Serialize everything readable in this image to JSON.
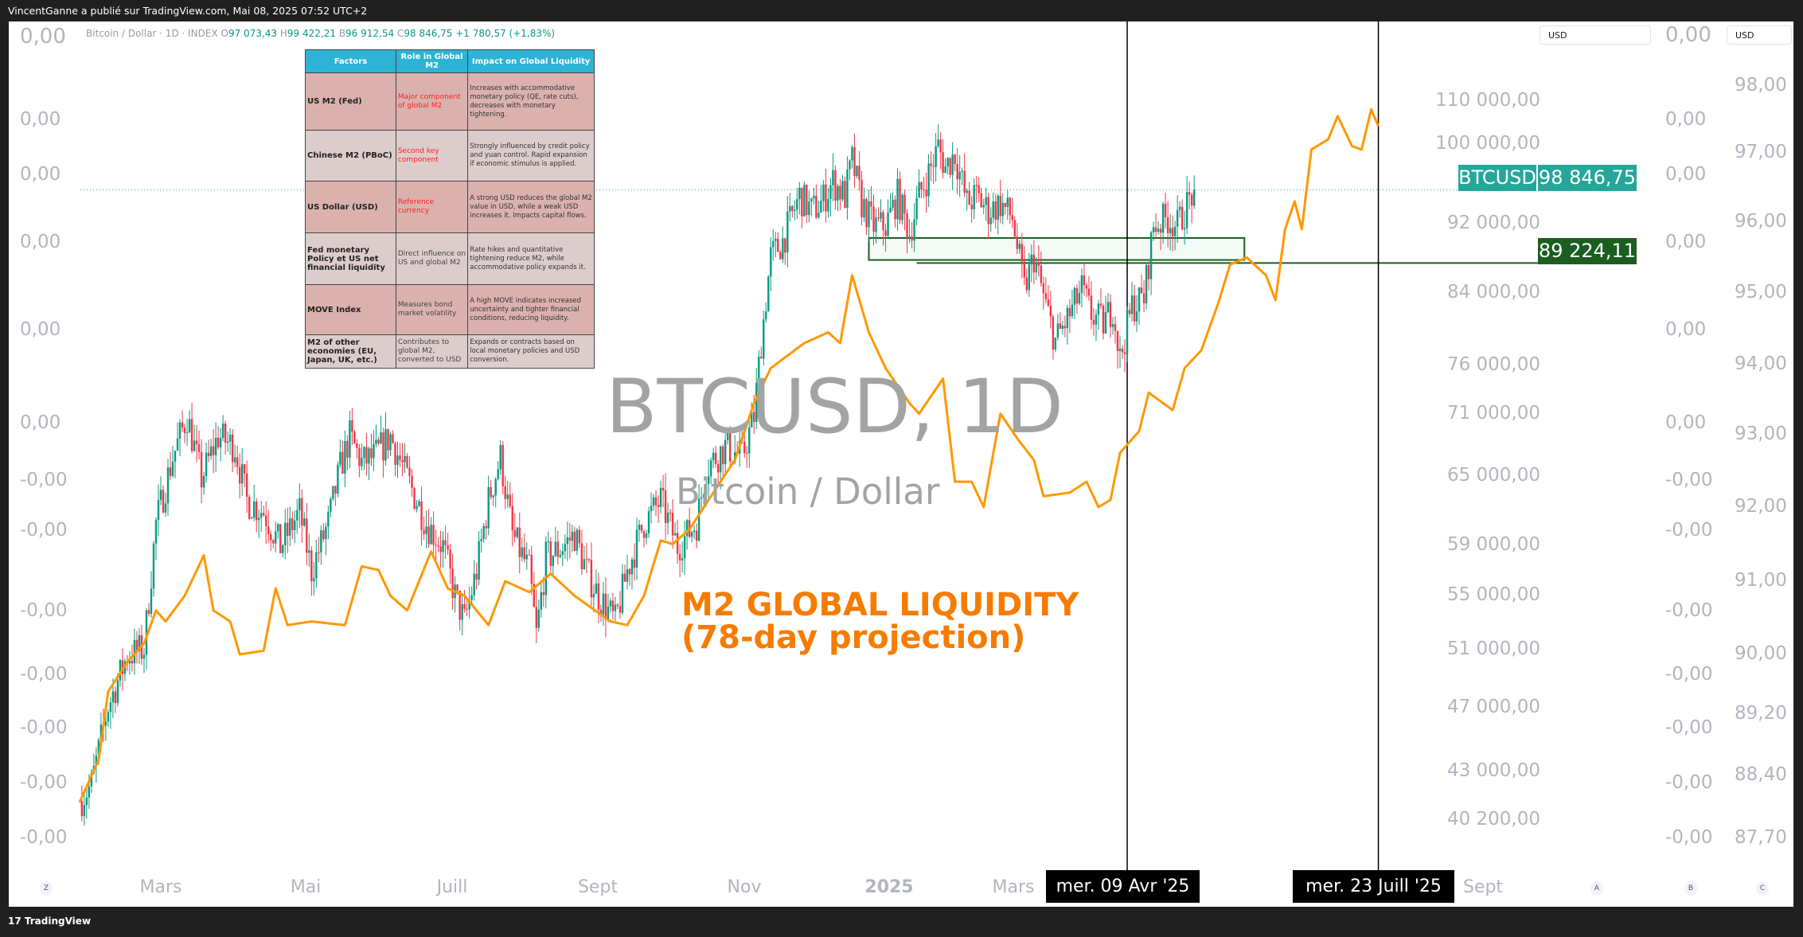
{
  "header": {
    "publisher": "VincentGanne a publié sur TradingView.com, Mai 08, 2025 07:52 UTC+2"
  },
  "legend": {
    "symbol": "Bitcoin / Dollar · 1D · INDEX",
    "o_label": "O",
    "o": "97 073,43",
    "h_label": "H",
    "h": "99 422,21",
    "b_label": "B",
    "b": "96 912,54",
    "c_label": "C",
    "c": "98 846,75",
    "change": "+1 780,57 (+1,83%)"
  },
  "table": {
    "headers": [
      "Factors",
      "Role in Global M2",
      "Impact on Global Liquidity"
    ],
    "rows": [
      {
        "factor": "US M2 (Fed)",
        "role": "Major component of global M2",
        "impact": "Increases with accommodative monetary policy (QE, rate cuts), decreases with monetary tightening."
      },
      {
        "factor": "Chinese M2 (PBoC)",
        "role": "Second key component",
        "impact": "Strongly influenced by credit policy and yuan control. Rapid expansion if economic stimulus is applied."
      },
      {
        "factor": "US Dollar (USD)",
        "role": "Reference currency",
        "impact": "A strong USD reduces the global M2 value in USD, while a weak USD increases it. Impacts capital flows."
      },
      {
        "factor": "Fed  monetary Policy et US net financial liquidity",
        "role": "Direct influence on US and global M2",
        "impact": "Rate hikes and quantitative tightening reduce M2, while accommodative policy expands it."
      },
      {
        "factor": "MOVE Index",
        "role": "Measures bond market volatility",
        "impact": "A high MOVE indicates increased uncertainty and tighter financial conditions, reducing liquidity."
      },
      {
        "factor": "M2 of other economies (EU, Japan, UK, etc.)",
        "role": "Contributes to global M2, converted to USD",
        "impact": "Expands or contracts based on local monetary policies and USD conversion."
      }
    ]
  },
  "watermark": {
    "title": "BTCUSD, 1D",
    "subtitle": "Bitcoin / Dollar"
  },
  "annotation": {
    "line1": "M2 GLOBAL LIQUIDITY",
    "line2": "(78-day projection)"
  },
  "axes": {
    "left_labels": [
      "0,00",
      "0,00",
      "0,00",
      "0,00",
      "0,00",
      "-0,00",
      "-0,00",
      "-0,00",
      "-0,00",
      "-0,00",
      "-0,00",
      "-0,00"
    ],
    "header_zero": "0,00",
    "mid_header": "0,00",
    "mid_labels": [
      "0,00",
      "0,00",
      "0,00",
      "0,00",
      "0,00",
      "-0,00",
      "-0,00",
      "-0,00",
      "-0,00",
      "-0,00",
      "-0,00",
      "-0,00"
    ],
    "btc_ticks": [
      "110 000,00",
      "100 000,00",
      "92 000,00",
      "84 000,00",
      "76 000,00",
      "71 000,00",
      "65 000,00",
      "59 000,00",
      "55 000,00",
      "51 000,00",
      "47 000,00",
      "43 000,00",
      "40 200,00"
    ],
    "m2_ticks": [
      "98,00",
      "97,00",
      "96,00",
      "95,00",
      "94,00",
      "93,00",
      "92,00",
      "91,00",
      "90,00",
      "89,20",
      "88,40",
      "87,70"
    ],
    "currency": "USD",
    "time_labels": [
      "Mars",
      "Mai",
      "Juill",
      "Sept",
      "Nov",
      "2025",
      "Mars",
      "Sept"
    ],
    "buttons": [
      "Z",
      "A",
      "B",
      "C"
    ]
  },
  "price_tags": {
    "symbol": "BTCUSD",
    "last": "98 846,75",
    "level": "89 224,11"
  },
  "date_markers": [
    "mer. 09 Avr '25",
    "mer. 23 Juill '25"
  ],
  "footer": {
    "brand": "TradingView"
  },
  "colors": {
    "up": "#089981",
    "down": "#f23645",
    "m2": "#ff9800",
    "level": "#1b5e20",
    "tag": "#26a69a"
  },
  "chart_data": {
    "type": "candlestick+line",
    "time_unit": "days since 2024-03-01",
    "btc_close": [
      [
        -34,
        42000
      ],
      [
        -29,
        43000
      ],
      [
        -22,
        48000
      ],
      [
        -14,
        51500
      ],
      [
        -7,
        52000
      ],
      [
        -2,
        62000
      ],
      [
        5,
        68000
      ],
      [
        11,
        72000
      ],
      [
        17,
        66000
      ],
      [
        24,
        70000
      ],
      [
        31,
        69000
      ],
      [
        36,
        64000
      ],
      [
        43,
        63000
      ],
      [
        50,
        60000
      ],
      [
        58,
        63000
      ],
      [
        63,
        58000
      ],
      [
        70,
        62000
      ],
      [
        75,
        67000
      ],
      [
        79,
        70000
      ],
      [
        84,
        67500
      ],
      [
        89,
        68000
      ],
      [
        96,
        70000
      ],
      [
        103,
        66000
      ],
      [
        111,
        62000
      ],
      [
        118,
        60000
      ],
      [
        123,
        56000
      ],
      [
        127,
        54000
      ],
      [
        132,
        58000
      ],
      [
        137,
        64000
      ],
      [
        142,
        68000
      ],
      [
        147,
        61000
      ],
      [
        154,
        58000
      ],
      [
        157,
        53000
      ],
      [
        161,
        59000
      ],
      [
        168,
        60000
      ],
      [
        173,
        61000
      ],
      [
        178,
        58000
      ],
      [
        183,
        56000
      ],
      [
        190,
        54000
      ],
      [
        195,
        58000
      ],
      [
        202,
        62000
      ],
      [
        209,
        64000
      ],
      [
        216,
        60000
      ],
      [
        224,
        62000
      ],
      [
        228,
        67000
      ],
      [
        236,
        69000
      ],
      [
        243,
        68000
      ],
      [
        248,
        72000
      ],
      [
        251,
        80000
      ],
      [
        255,
        90000
      ],
      [
        260,
        92000
      ],
      [
        267,
        98000
      ],
      [
        272,
        96000
      ],
      [
        276,
        97000
      ],
      [
        281,
        100000
      ],
      [
        286,
        98000
      ],
      [
        289,
        103000
      ],
      [
        293,
        97000
      ],
      [
        298,
        94000
      ],
      [
        303,
        94000
      ],
      [
        308,
        98000
      ],
      [
        313,
        93000
      ],
      [
        317,
        98000
      ],
      [
        322,
        102000
      ],
      [
        325,
        105000
      ],
      [
        328,
        102000
      ],
      [
        332,
        104000
      ],
      [
        337,
        97000
      ],
      [
        341,
        98000
      ],
      [
        346,
        96000
      ],
      [
        351,
        97000
      ],
      [
        356,
        95000
      ],
      [
        361,
        86000
      ],
      [
        365,
        90000
      ],
      [
        370,
        84000
      ],
      [
        374,
        80000
      ],
      [
        380,
        83000
      ],
      [
        385,
        86000
      ],
      [
        389,
        83000
      ],
      [
        394,
        82000
      ],
      [
        398,
        84000
      ],
      [
        401,
        78000
      ],
      [
        406,
        84000
      ],
      [
        411,
        85000
      ],
      [
        415,
        94000
      ],
      [
        421,
        95000
      ],
      [
        425,
        94000
      ],
      [
        432,
        98846.75
      ]
    ],
    "m2_projection": [
      [
        -34,
        88.1
      ],
      [
        -26,
        88.6
      ],
      [
        -22,
        89.5
      ],
      [
        -14,
        89.9
      ],
      [
        -7,
        90.15
      ],
      [
        -2,
        90.6
      ],
      [
        2,
        90.45
      ],
      [
        10,
        90.8
      ],
      [
        18,
        91.35
      ],
      [
        22,
        90.6
      ],
      [
        29,
        90.45
      ],
      [
        33,
        90.0
      ],
      [
        43,
        90.05
      ],
      [
        48,
        90.9
      ],
      [
        53,
        90.4
      ],
      [
        63,
        90.45
      ],
      [
        77,
        90.4
      ],
      [
        84,
        91.2
      ],
      [
        91,
        91.15
      ],
      [
        96,
        90.8
      ],
      [
        103,
        90.6
      ],
      [
        113,
        91.4
      ],
      [
        120,
        90.9
      ],
      [
        127,
        90.8
      ],
      [
        137,
        90.4
      ],
      [
        144,
        91.0
      ],
      [
        154,
        90.85
      ],
      [
        163,
        91.1
      ],
      [
        173,
        90.8
      ],
      [
        188,
        90.45
      ],
      [
        195,
        90.4
      ],
      [
        202,
        90.8
      ],
      [
        209,
        91.55
      ],
      [
        214,
        91.5
      ],
      [
        221,
        91.7
      ],
      [
        231,
        92.2
      ],
      [
        240,
        92.65
      ],
      [
        248,
        93.45
      ],
      [
        255,
        93.95
      ],
      [
        269,
        94.3
      ],
      [
        279,
        94.45
      ],
      [
        284,
        94.3
      ],
      [
        289,
        95.25
      ],
      [
        296,
        94.45
      ],
      [
        303,
        93.95
      ],
      [
        313,
        93.45
      ],
      [
        317,
        93.3
      ],
      [
        327,
        93.8
      ],
      [
        332,
        92.35
      ],
      [
        339,
        92.35
      ],
      [
        344,
        92.0
      ],
      [
        351,
        93.3
      ],
      [
        358,
        92.95
      ],
      [
        365,
        92.65
      ],
      [
        369,
        92.15
      ],
      [
        380,
        92.2
      ],
      [
        387,
        92.35
      ],
      [
        392,
        92.0
      ],
      [
        397,
        92.1
      ],
      [
        401,
        92.75
      ],
      [
        409,
        93.05
      ],
      [
        413,
        93.6
      ],
      [
        423,
        93.35
      ],
      [
        428,
        93.95
      ],
      [
        435,
        94.2
      ],
      [
        442,
        94.85
      ],
      [
        447,
        95.4
      ],
      [
        454,
        95.5
      ],
      [
        462,
        95.25
      ],
      [
        466,
        94.9
      ],
      [
        470,
        95.9
      ],
      [
        474,
        96.3
      ],
      [
        477,
        95.9
      ],
      [
        481,
        97.05
      ],
      [
        488,
        97.2
      ],
      [
        492,
        97.55
      ],
      [
        498,
        97.1
      ],
      [
        502,
        97.05
      ],
      [
        506,
        97.65
      ],
      [
        509,
        97.4
      ]
    ],
    "zone": {
      "day_from": 296,
      "day_to": 453,
      "price_low": 89600,
      "price_high": 92400
    },
    "level_line": {
      "day_from": 316,
      "price": 89224.11
    },
    "vertical_markers_days": [
      404,
      509
    ],
    "btc_axis": {
      "scale": "log"
    },
    "m2_axis": {
      "ticks": [
        98,
        97,
        96,
        95,
        94,
        93,
        92,
        91,
        90,
        89.2,
        88.4,
        87.7
      ]
    }
  }
}
